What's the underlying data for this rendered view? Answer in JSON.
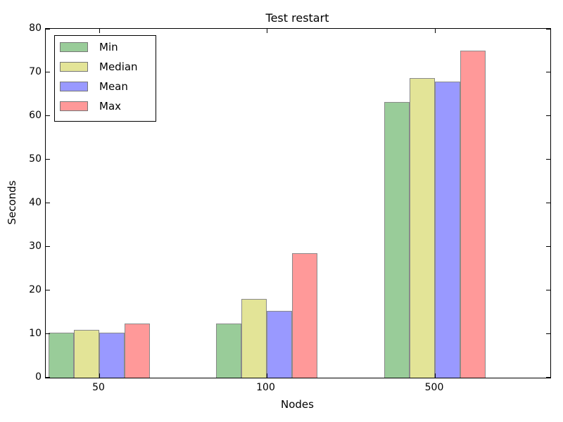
{
  "title": "Test restart",
  "xlabel": "Nodes",
  "ylabel": "Seconds",
  "chart_data": {
    "type": "bar",
    "categories": [
      "50",
      "100",
      "500"
    ],
    "series": [
      {
        "name": "Min",
        "values": [
          10.4,
          12.5,
          63.2
        ],
        "color": "#99cc99"
      },
      {
        "name": "Median",
        "values": [
          10.9,
          18.0,
          68.7
        ],
        "color": "#e3e497"
      },
      {
        "name": "Mean",
        "values": [
          10.4,
          15.4,
          67.9
        ],
        "color": "#9999ff"
      },
      {
        "name": "Max",
        "values": [
          12.4,
          28.5,
          75.0
        ],
        "color": "#ff9999"
      }
    ],
    "title": "Test restart",
    "xlabel": "Nodes",
    "ylabel": "Seconds",
    "ylim": [
      0,
      80
    ],
    "yticks": [
      0,
      10,
      20,
      30,
      40,
      50,
      60,
      70,
      80
    ],
    "grid": false,
    "legend_position": "upper left",
    "bar_edge_color": "#8a8a8a",
    "spine_color": "#000000",
    "background_color": "#ffffff"
  }
}
